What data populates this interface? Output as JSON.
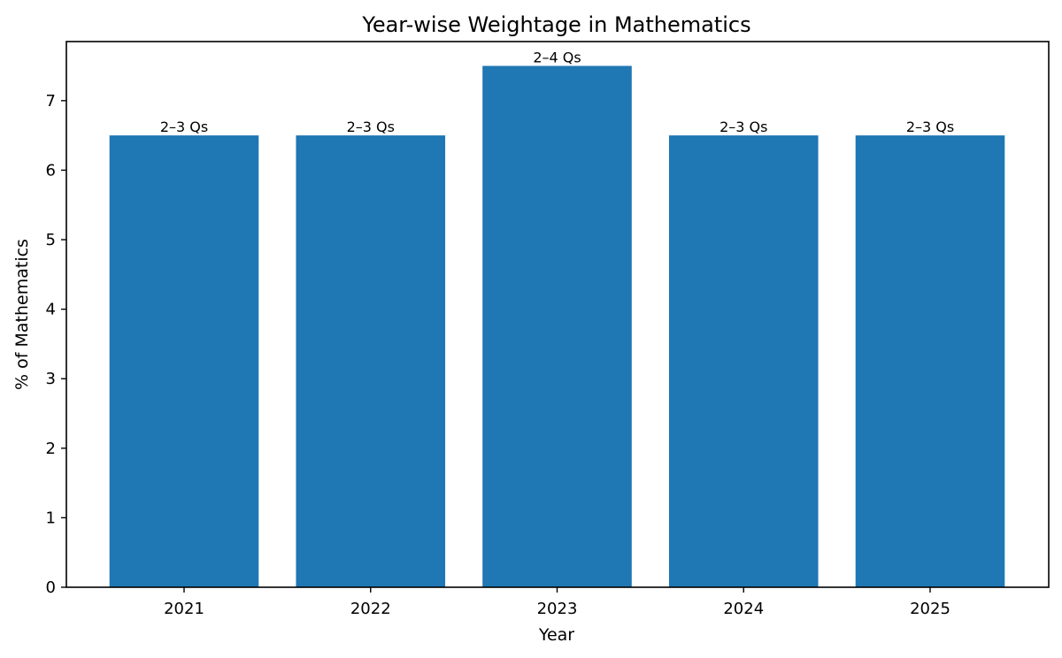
{
  "chart_data": {
    "type": "bar",
    "title": "Year-wise Weightage in Mathematics",
    "xlabel": "Year",
    "ylabel": "% of Mathematics",
    "categories": [
      "2021",
      "2022",
      "2023",
      "2024",
      "2025"
    ],
    "values": [
      6.5,
      6.5,
      7.5,
      6.5,
      6.5
    ],
    "bar_labels": [
      "2–3 Qs",
      "2–3 Qs",
      "2–4 Qs",
      "2–3 Qs",
      "2–3 Qs"
    ],
    "ylim": [
      0,
      7.85
    ],
    "yticks": [
      0,
      1,
      2,
      3,
      4,
      5,
      6,
      7
    ],
    "bar_color": "#1f77b4",
    "grid": false
  }
}
